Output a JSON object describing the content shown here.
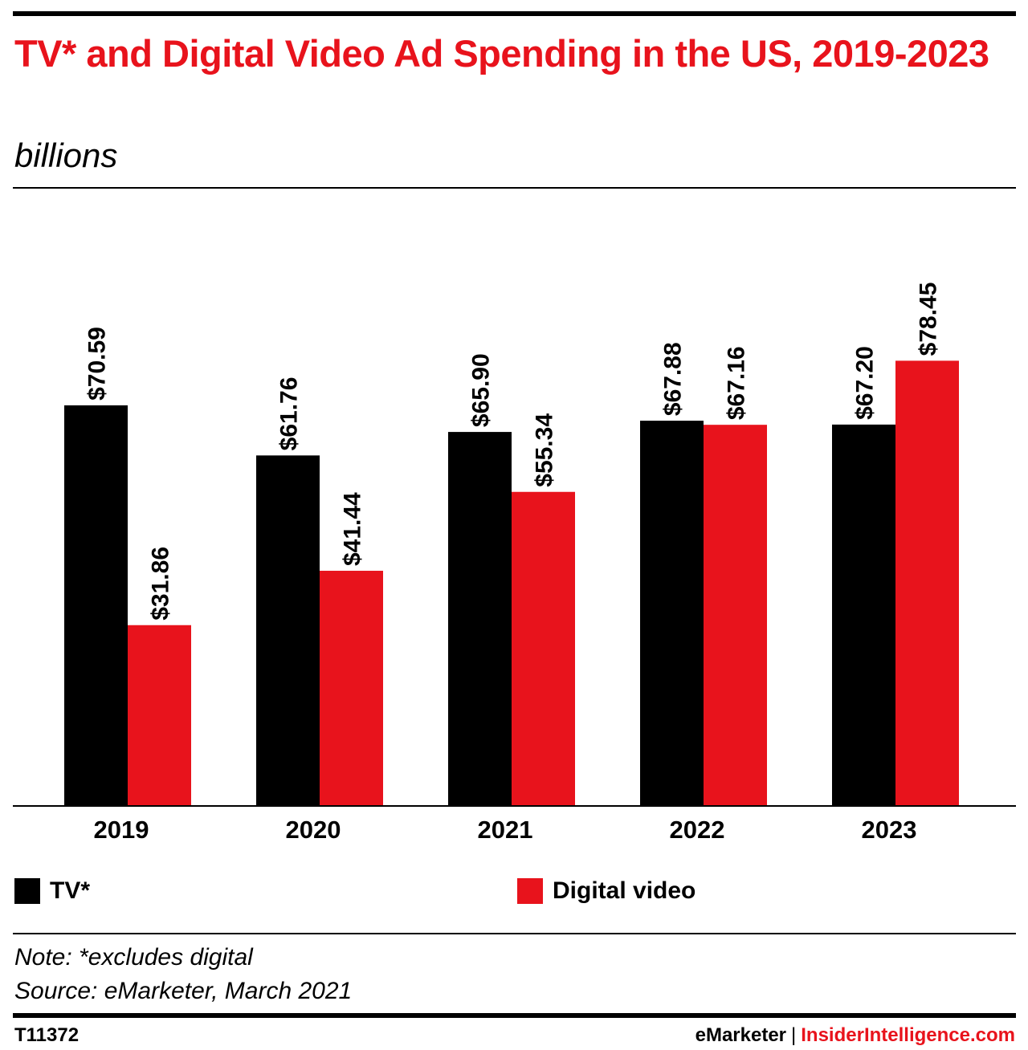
{
  "title": "TV* and Digital Video Ad Spending in the US, 2019-2023",
  "subtitle": "billions",
  "chart_data": {
    "type": "bar",
    "title": "TV* and Digital Video Ad Spending in the US, 2019-2023",
    "ylabel": "billions",
    "xlabel": "",
    "ylim": [
      0,
      80
    ],
    "grid": false,
    "categories": [
      "2019",
      "2020",
      "2021",
      "2022",
      "2023"
    ],
    "series": [
      {
        "name": "TV*",
        "color": "#000000",
        "values": [
          70.59,
          61.76,
          65.9,
          67.88,
          67.2
        ],
        "labels": [
          "$70.59",
          "$61.76",
          "$65.90",
          "$67.88",
          "$67.20"
        ]
      },
      {
        "name": "Digital video",
        "color": "#e8131c",
        "values": [
          31.86,
          41.44,
          55.34,
          67.16,
          78.45
        ],
        "labels": [
          "$31.86",
          "$41.44",
          "$55.34",
          "$67.16",
          "$78.45"
        ]
      }
    ],
    "legend_position": "bottom"
  },
  "legend": [
    {
      "label": "TV*",
      "color": "#000000"
    },
    {
      "label": "Digital video",
      "color": "#e8131c"
    }
  ],
  "note": "Note: *excludes digital",
  "source": "Source: eMarketer, March 2021",
  "footer": {
    "chart_id": "T11372",
    "brand_left": "eMarketer",
    "separator": "|",
    "brand_right": "InsiderIntelligence.com"
  }
}
